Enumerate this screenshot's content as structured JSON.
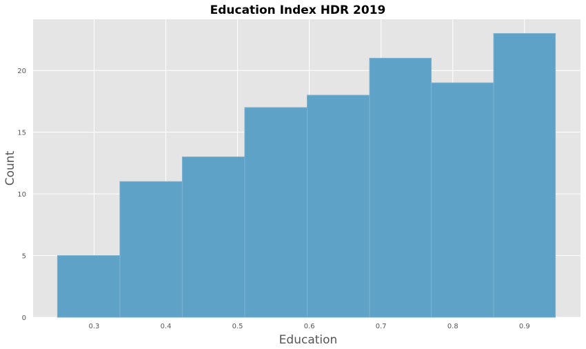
{
  "chart_data": {
    "type": "bar",
    "title": "Education Index HDR 2019",
    "xlabel": "Education",
    "ylabel": "Count",
    "bins": [
      {
        "x0": 0.249,
        "x1": 0.336,
        "count": 5
      },
      {
        "x0": 0.336,
        "x1": 0.423,
        "count": 11
      },
      {
        "x0": 0.423,
        "x1": 0.51,
        "count": 13
      },
      {
        "x0": 0.51,
        "x1": 0.597,
        "count": 17
      },
      {
        "x0": 0.597,
        "x1": 0.684,
        "count": 18
      },
      {
        "x0": 0.684,
        "x1": 0.77,
        "count": 21
      },
      {
        "x0": 0.77,
        "x1": 0.857,
        "count": 19
      },
      {
        "x0": 0.857,
        "x1": 0.943,
        "count": 23
      }
    ],
    "xlim": [
      0.215,
      0.978
    ],
    "ylim": [
      0,
      24.15
    ],
    "xticks": [
      0.3,
      0.4,
      0.5,
      0.6,
      0.7,
      0.8,
      0.9
    ],
    "xtick_labels": [
      "0.3",
      "0.4",
      "0.5",
      "0.6",
      "0.7",
      "0.8",
      "0.9"
    ],
    "yticks": [
      0,
      5,
      10,
      15,
      20
    ],
    "ytick_labels": [
      "0",
      "5",
      "10",
      "15",
      "20"
    ],
    "grid": true,
    "colors": {
      "bar": "#5ea2c8",
      "bar_edge": "#7db3d2",
      "plot_background": "#e5e5e5",
      "grid": "#ffffff"
    }
  }
}
